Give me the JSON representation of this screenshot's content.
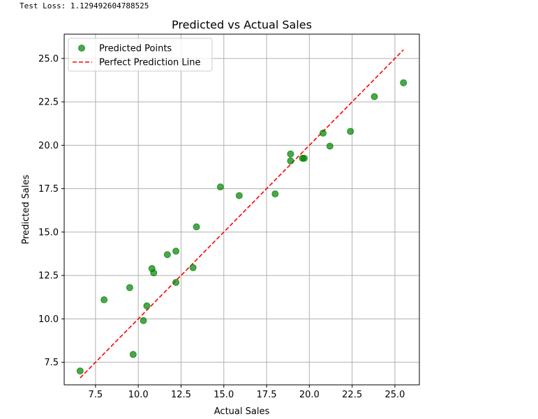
{
  "console": {
    "test_loss_text": "Test Loss: 1.129492604788525"
  },
  "colors": {
    "points": "#008000",
    "line": "#ff0000",
    "grid": "#b0b0b0"
  },
  "chart_data": {
    "type": "scatter",
    "title": "Predicted vs Actual Sales",
    "xlabel": "Actual Sales",
    "ylabel": "Predicted Sales",
    "xlim": [
      5.67,
      26.43
    ],
    "ylim": [
      6.2,
      26.4
    ],
    "xticks": [
      7.5,
      10.0,
      12.5,
      15.0,
      17.5,
      20.0,
      22.5,
      25.0
    ],
    "xtick_labels": [
      "7.5",
      "10.0",
      "12.5",
      "15.0",
      "17.5",
      "20.0",
      "22.5",
      "25.0"
    ],
    "yticks": [
      7.5,
      10.0,
      12.5,
      15.0,
      17.5,
      20.0,
      22.5,
      25.0
    ],
    "ytick_labels": [
      "7.5",
      "10.0",
      "12.5",
      "15.0",
      "17.5",
      "20.0",
      "22.5",
      "25.0"
    ],
    "grid": true,
    "legend_position": "top-left",
    "series": [
      {
        "name": "Predicted Points",
        "kind": "scatter",
        "x": [
          6.6,
          8.0,
          9.5,
          9.7,
          10.3,
          10.5,
          10.8,
          10.9,
          11.7,
          12.2,
          12.2,
          13.2,
          13.4,
          14.8,
          15.9,
          18.0,
          18.9,
          18.9,
          19.6,
          19.7,
          20.8,
          21.2,
          22.4,
          23.8,
          25.5
        ],
        "y": [
          7.0,
          11.1,
          11.8,
          7.95,
          9.9,
          10.75,
          12.9,
          12.65,
          13.7,
          12.1,
          13.9,
          12.95,
          15.3,
          17.6,
          17.1,
          17.2,
          19.5,
          19.1,
          19.25,
          19.25,
          20.7,
          19.95,
          20.8,
          22.8,
          23.6
        ]
      },
      {
        "name": "Perfect Prediction Line",
        "kind": "line",
        "style": "dashed",
        "x": [
          6.6,
          25.5
        ],
        "y": [
          6.6,
          25.5
        ]
      }
    ]
  }
}
